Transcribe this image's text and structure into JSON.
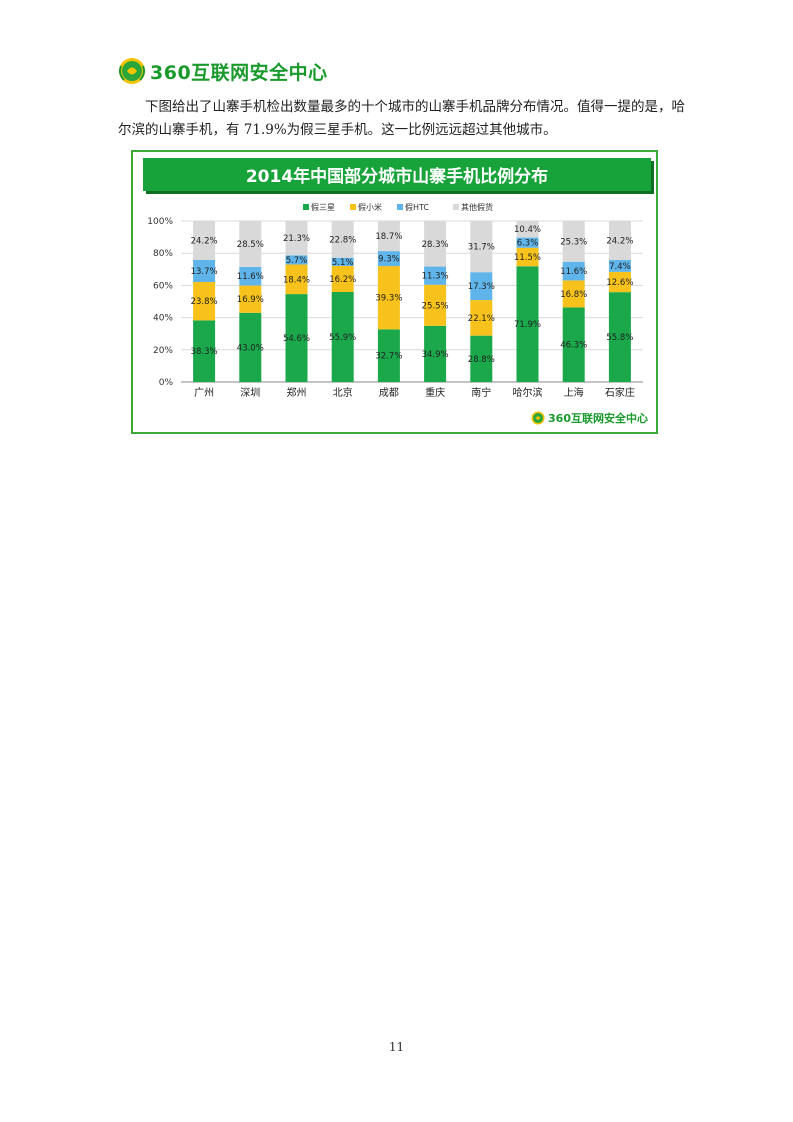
{
  "header": {
    "logo_text": "360互联网安全中心",
    "logo_icon": "360-shield-icon"
  },
  "paragraph": "下图给出了山寨手机检出数量最多的十个城市的山寨手机品牌分布情况。值得一提的是，哈尔滨的山寨手机，有 71.9%为假三星手机。这一比例远远超过其他城市。",
  "chart_title": "2014年中国部分城市山寨手机比例分布",
  "chart_footer_logo": "360互联网安全中心",
  "chart_data": {
    "type": "bar",
    "stacked": true,
    "percent": true,
    "title": "2014年中国部分城市山寨手机比例分布",
    "categories": [
      "广州",
      "深圳",
      "郑州",
      "北京",
      "成都",
      "重庆",
      "南宁",
      "哈尔滨",
      "上海",
      "石家庄"
    ],
    "series": [
      {
        "name": "假三星",
        "color": "#1aa84b",
        "values": [
          38.3,
          43.0,
          54.6,
          55.9,
          32.7,
          34.9,
          28.8,
          71.9,
          46.3,
          55.8
        ]
      },
      {
        "name": "假小米",
        "color": "#f8c21c",
        "values": [
          23.8,
          16.9,
          18.4,
          16.2,
          39.3,
          25.5,
          22.1,
          11.5,
          16.8,
          12.6
        ]
      },
      {
        "name": "假HTC",
        "color": "#5fb4e9",
        "values": [
          13.7,
          11.6,
          5.7,
          5.1,
          9.3,
          11.3,
          17.3,
          6.3,
          11.6,
          7.4
        ]
      },
      {
        "name": "其他假货",
        "color": "#d9d9d9",
        "values": [
          24.2,
          28.5,
          21.3,
          22.8,
          18.7,
          28.3,
          31.7,
          10.4,
          25.3,
          24.2
        ]
      }
    ],
    "y_ticks": [
      "0%",
      "20%",
      "40%",
      "60%",
      "80%",
      "100%"
    ],
    "ylim": [
      0,
      100
    ],
    "legend_position": "top-center",
    "grid": true
  },
  "page_number": "11"
}
